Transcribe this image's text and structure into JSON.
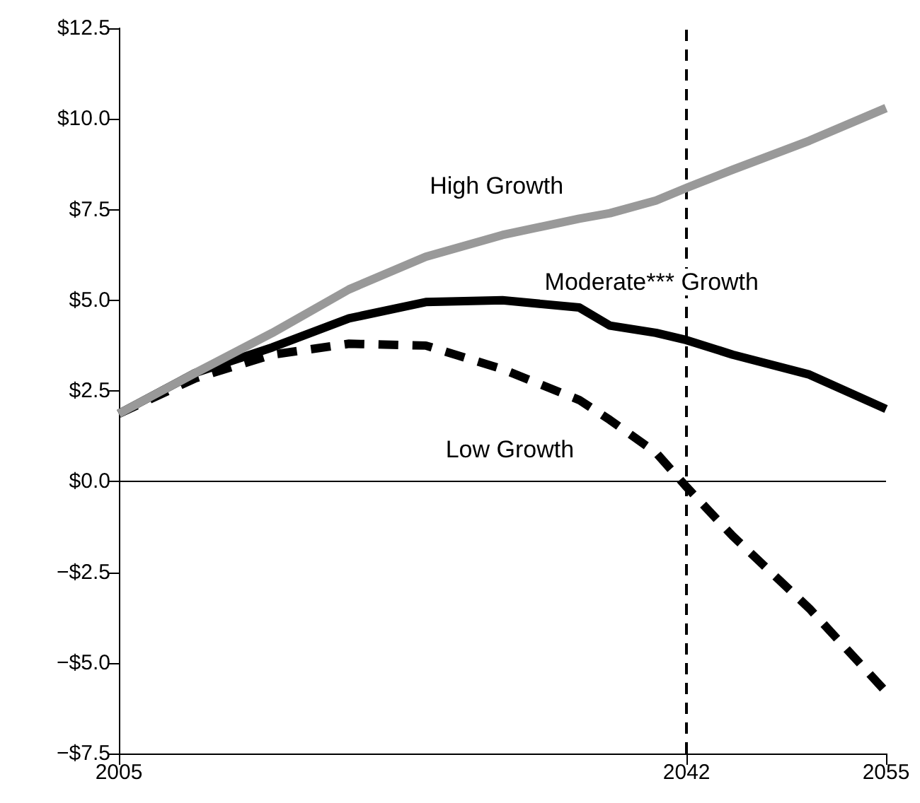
{
  "chart_data": {
    "type": "line",
    "x": [
      2005,
      2010,
      2015,
      2020,
      2025,
      2030,
      2035,
      2037,
      2040,
      2042,
      2045,
      2050,
      2055
    ],
    "series": [
      {
        "name": "High Growth",
        "color": "#999999",
        "line_style": "solid",
        "values": [
          1.87,
          3.0,
          4.1,
          5.3,
          6.2,
          6.8,
          7.25,
          7.4,
          7.75,
          8.1,
          8.6,
          9.4,
          10.3
        ]
      },
      {
        "name": "Moderate*** Growth",
        "color": "#000000",
        "line_style": "solid",
        "values": [
          1.87,
          3.0,
          3.7,
          4.5,
          4.95,
          5.0,
          4.8,
          4.3,
          4.1,
          3.9,
          3.5,
          2.95,
          2.0
        ]
      },
      {
        "name": "Low Growth",
        "color": "#000000",
        "line_style": "dashed",
        "values": [
          1.87,
          2.85,
          3.5,
          3.8,
          3.75,
          3.1,
          2.25,
          1.7,
          0.8,
          -0.15,
          -1.5,
          -3.5,
          -5.8
        ]
      }
    ],
    "xlim": [
      2005,
      2055
    ],
    "xticks": [
      2005,
      2042,
      2055
    ],
    "ylim": [
      -7.5,
      12.5
    ],
    "yticks": [
      {
        "value": -7.5,
        "label": "−$7.5"
      },
      {
        "value": -5,
        "label": "−$5.0"
      },
      {
        "value": -2.5,
        "label": "−$2.5"
      },
      {
        "value": 0,
        "label": "$0.0"
      },
      {
        "value": 2.5,
        "label": "$2.5"
      },
      {
        "value": 5,
        "label": "$5.0"
      },
      {
        "value": 7.5,
        "label": "$7.5"
      },
      {
        "value": 10,
        "label": "$10.0"
      },
      {
        "value": 12.5,
        "label": "$12.5"
      }
    ],
    "ref_lines": [
      {
        "axis": "x",
        "value": 2042,
        "line_style": "dashed",
        "color": "#000000"
      },
      {
        "axis": "y",
        "value": 0,
        "line_style": "solid",
        "color": "#000000"
      }
    ],
    "grid": false,
    "legend": false,
    "marker": "none"
  }
}
